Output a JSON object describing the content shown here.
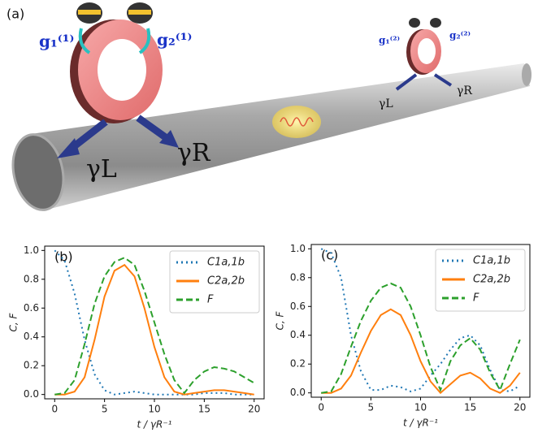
{
  "illustration": {
    "panel_label": "(a)",
    "g1_big": "g₁⁽¹⁾",
    "g2_big": "g₂⁽¹⁾",
    "g1_small": "g₁⁽²⁾",
    "g2_small": "g₂⁽²⁾",
    "gamma_L_big": "γL",
    "gamma_R_big": "γR",
    "gamma_L_small": "γL",
    "gamma_R_small": "γR"
  },
  "chart_data": [
    {
      "type": "line",
      "panel_label": "(b)",
      "x_label": "t / γR⁻¹",
      "y_label": "C, F",
      "x": [
        0,
        1,
        2,
        3,
        4,
        5,
        6,
        7,
        8,
        9,
        10,
        11,
        12,
        13,
        14,
        15,
        16,
        17,
        18,
        19,
        20
      ],
      "xlim": [
        -1,
        21
      ],
      "ylim": [
        -0.03,
        1.03
      ],
      "xticks": [
        0,
        5,
        10,
        15,
        20
      ],
      "yticks": [
        {
          "value": 0,
          "label": "0.0"
        },
        0.2,
        0.4,
        0.6,
        0.8,
        {
          "value": 1,
          "label": "1.0"
        }
      ],
      "legend": "upper right",
      "series": [
        {
          "name": "C1a,1b",
          "color": "#1f77b4",
          "dash": "dotted",
          "values": [
            1.0,
            0.93,
            0.7,
            0.38,
            0.14,
            0.03,
            0.0,
            0.01,
            0.02,
            0.01,
            0.0,
            0.0,
            0.0,
            0.0,
            0.0,
            0.01,
            0.01,
            0.01,
            0.0,
            0.0,
            0.0
          ]
        },
        {
          "name": "C2a,2b",
          "color": "#ff7f0e",
          "dash": "solid",
          "values": [
            0,
            0.0,
            0.02,
            0.12,
            0.38,
            0.68,
            0.86,
            0.9,
            0.82,
            0.6,
            0.33,
            0.12,
            0.02,
            0.0,
            0.01,
            0.02,
            0.03,
            0.03,
            0.02,
            0.01,
            0.0
          ]
        },
        {
          "name": "F",
          "color": "#2ca02c",
          "dash": "dashed",
          "values": [
            0,
            0.01,
            0.1,
            0.35,
            0.63,
            0.82,
            0.92,
            0.95,
            0.9,
            0.72,
            0.5,
            0.28,
            0.1,
            0.01,
            0.1,
            0.16,
            0.19,
            0.18,
            0.16,
            0.12,
            0.08
          ]
        }
      ]
    },
    {
      "type": "line",
      "panel_label": "(c)",
      "x_label": "t / γR⁻¹",
      "y_label": "C, F",
      "x": [
        0,
        1,
        2,
        3,
        4,
        5,
        6,
        7,
        8,
        9,
        10,
        11,
        12,
        13,
        14,
        15,
        16,
        17,
        18,
        19,
        20
      ],
      "xlim": [
        -1,
        21
      ],
      "ylim": [
        -0.03,
        1.03
      ],
      "xticks": [
        0,
        5,
        10,
        15,
        20
      ],
      "yticks": [
        {
          "value": 0,
          "label": "0.0"
        },
        0.2,
        0.4,
        0.6,
        0.8,
        {
          "value": 1,
          "label": "1.0"
        }
      ],
      "legend": "upper right",
      "series": [
        {
          "name": "C1a,1b",
          "color": "#1f77b4",
          "dash": "dotted",
          "values": [
            1.0,
            0.97,
            0.8,
            0.4,
            0.15,
            0.02,
            0.02,
            0.05,
            0.04,
            0.01,
            0.03,
            0.12,
            0.2,
            0.3,
            0.38,
            0.4,
            0.33,
            0.16,
            0.02,
            0.01,
            0.05
          ]
        },
        {
          "name": "C2a,2b",
          "color": "#ff7f0e",
          "dash": "solid",
          "values": [
            0,
            0.0,
            0.03,
            0.12,
            0.28,
            0.43,
            0.54,
            0.58,
            0.54,
            0.4,
            0.22,
            0.08,
            0.0,
            0.06,
            0.12,
            0.14,
            0.1,
            0.03,
            0.0,
            0.05,
            0.14
          ]
        },
        {
          "name": "F",
          "color": "#2ca02c",
          "dash": "dashed",
          "values": [
            0,
            0.01,
            0.13,
            0.32,
            0.5,
            0.64,
            0.73,
            0.76,
            0.73,
            0.6,
            0.4,
            0.18,
            0.02,
            0.22,
            0.33,
            0.38,
            0.3,
            0.14,
            0.02,
            0.2,
            0.37
          ]
        }
      ]
    }
  ]
}
